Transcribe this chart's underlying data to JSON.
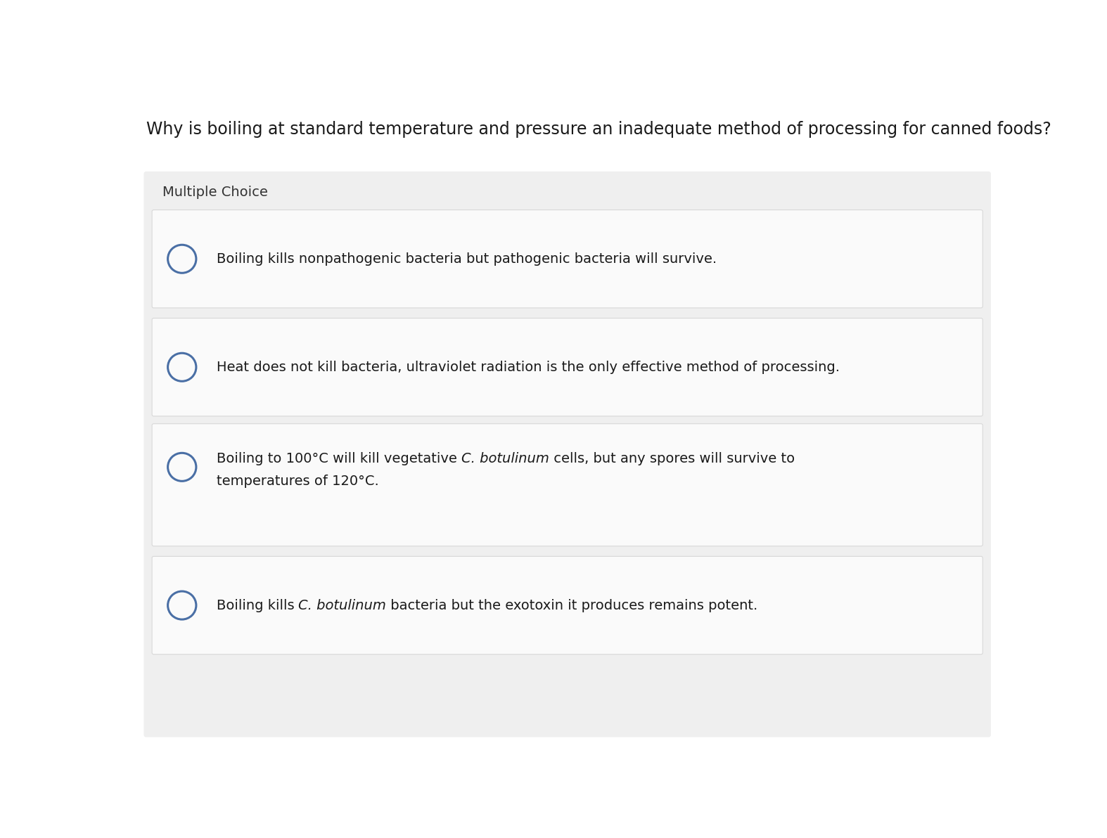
{
  "title": "Why is boiling at standard temperature and pressure an inadequate method of processing for canned foods?",
  "section_label": "Multiple Choice",
  "choices": [
    {
      "lines": [
        [
          {
            "text": "Boiling kills nonpathogenic bacteria but pathogenic bacteria will survive.",
            "italic": false
          }
        ]
      ]
    },
    {
      "lines": [
        [
          {
            "text": "Heat does not kill bacteria, ultraviolet radiation is the only effective method of processing.",
            "italic": false
          }
        ]
      ]
    },
    {
      "lines": [
        [
          {
            "text": "Boiling to 100°C will kill vegetative ",
            "italic": false
          },
          {
            "text": "C. botulinum",
            "italic": true
          },
          {
            "text": " cells, but any spores will survive to",
            "italic": false
          }
        ],
        [
          {
            "text": "temperatures of 120°C.",
            "italic": false
          }
        ]
      ]
    },
    {
      "lines": [
        [
          {
            "text": "Boiling kills ",
            "italic": false
          },
          {
            "text": "C. botulinum",
            "italic": true
          },
          {
            "text": " bacteria but the exotoxin it produces remains potent.",
            "italic": false
          }
        ]
      ]
    }
  ],
  "bg_color": "#ffffff",
  "panel_bg_color": "#efefef",
  "choice_bg_color": "#fafafa",
  "separator_color": "#d8d8d8",
  "title_color": "#1a1a1a",
  "label_color": "#333333",
  "text_color": "#1a1a1a",
  "circle_edge_color": "#4a6fa5",
  "title_fontsize": 17,
  "label_fontsize": 14,
  "choice_fontsize": 14,
  "fig_width": 15.74,
  "fig_height": 11.92,
  "dpi": 100
}
